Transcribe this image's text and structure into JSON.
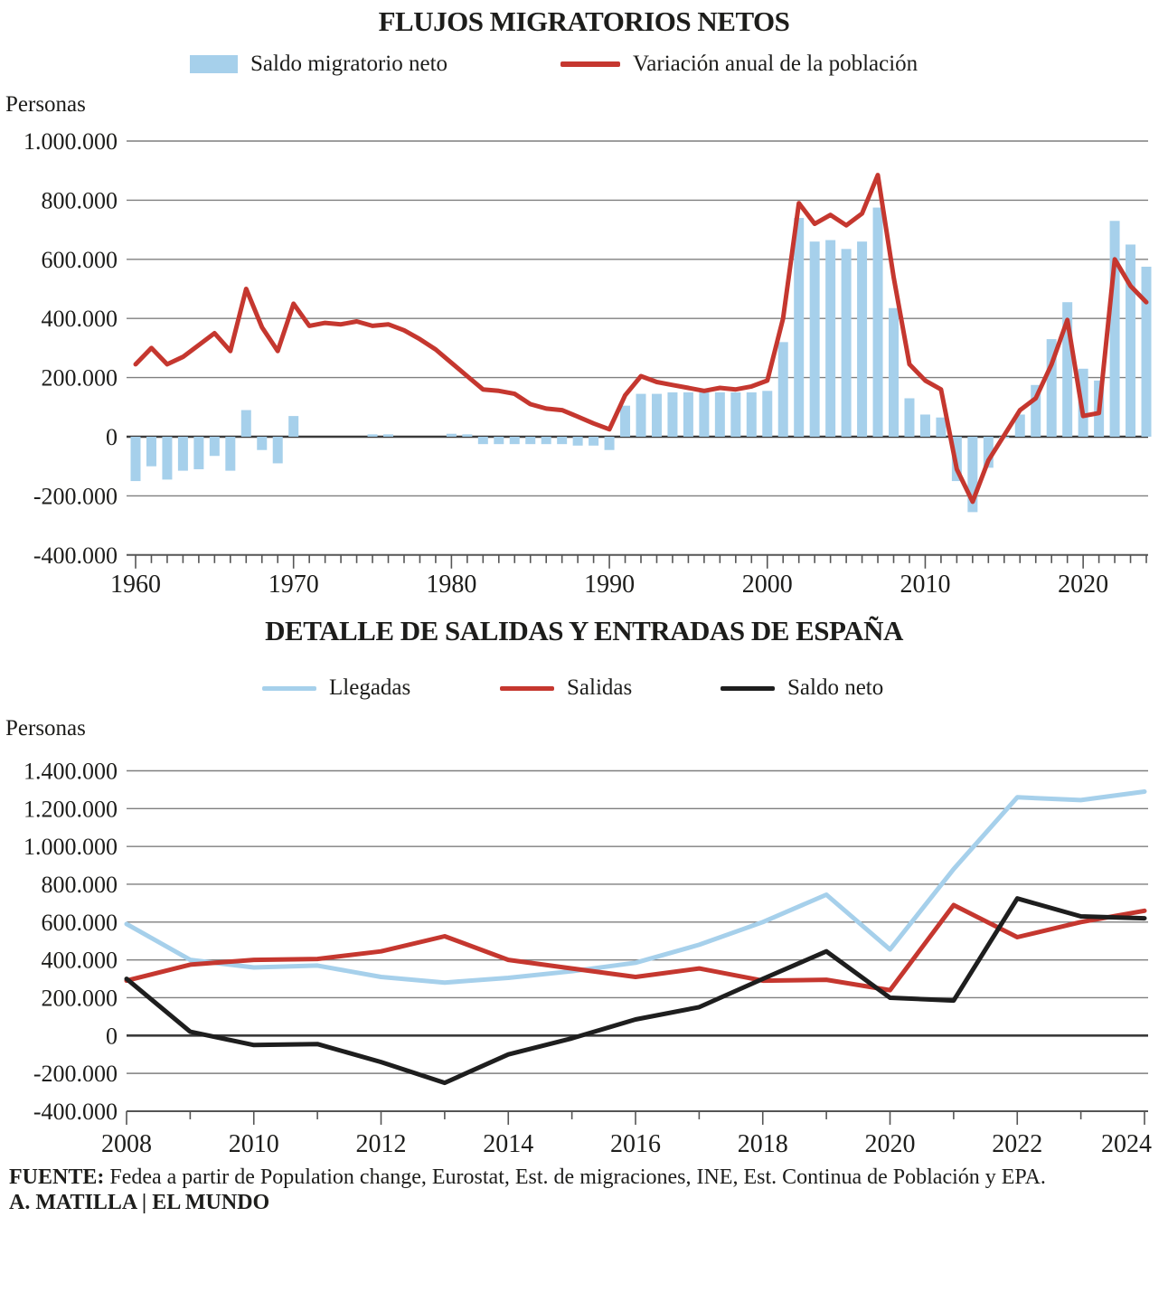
{
  "colors": {
    "blue": "#a6d0eb",
    "red": "#c5372f",
    "black": "#1e1e1e",
    "grid": "#7f7f7f",
    "zero_line": "#3a3a3a",
    "axis": "#555555",
    "text": "#1d1d1b"
  },
  "footer": {
    "source_label": "FUENTE:",
    "source_text": " Fedea a partir de Population change, Eurostat, Est. de migraciones, INE, Est. Continua de Población y EPA.",
    "credit": "A. MATILLA | EL MUNDO"
  },
  "chart_data": [
    {
      "type": "bar",
      "title": "FLUJOS MIGRATORIOS NETOS",
      "unit_label": "Personas",
      "x_start": 1960,
      "x_end": 2024,
      "ylim": [
        -400000,
        1000000
      ],
      "ytick_step": 200000,
      "ytick_labels": [
        "1.000.000",
        "800.000",
        "600.000",
        "400.000",
        "200.000",
        "0",
        "-200.000",
        "-400.000"
      ],
      "xtick_labels": [
        "1960",
        "1970",
        "1980",
        "1990",
        "2000",
        "2010",
        "2020"
      ],
      "grid": true,
      "legend_position": "top",
      "series": [
        {
          "name": "Saldo migratorio neto",
          "type": "bar",
          "color": "#a6d0eb",
          "values": [
            -150000,
            -100000,
            -145000,
            -115000,
            -110000,
            -65000,
            -115000,
            90000,
            -45000,
            -90000,
            70000,
            0,
            0,
            0,
            0,
            8000,
            8000,
            0,
            0,
            0,
            10000,
            8000,
            -25000,
            -25000,
            -25000,
            -25000,
            -25000,
            -25000,
            -30000,
            -30000,
            -45000,
            105000,
            145000,
            145000,
            150000,
            150000,
            150000,
            150000,
            150000,
            150000,
            155000,
            320000,
            740000,
            660000,
            665000,
            635000,
            660000,
            775000,
            435000,
            130000,
            75000,
            65000,
            -150000,
            -255000,
            -105000,
            -5000,
            75000,
            175000,
            330000,
            455000,
            230000,
            190000,
            730000,
            650000,
            575000
          ]
        },
        {
          "name": "Variación anual de la población",
          "type": "line",
          "color": "#c5372f",
          "values": [
            245000,
            300000,
            245000,
            270000,
            310000,
            350000,
            290000,
            500000,
            370000,
            290000,
            450000,
            375000,
            385000,
            380000,
            390000,
            375000,
            380000,
            360000,
            330000,
            295000,
            250000,
            205000,
            160000,
            155000,
            145000,
            110000,
            95000,
            90000,
            68000,
            45000,
            25000,
            140000,
            205000,
            185000,
            175000,
            165000,
            155000,
            165000,
            160000,
            170000,
            190000,
            400000,
            790000,
            720000,
            750000,
            715000,
            755000,
            885000,
            540000,
            245000,
            190000,
            160000,
            -110000,
            -220000,
            -80000,
            5000,
            90000,
            130000,
            245000,
            395000,
            70000,
            80000,
            600000,
            510000,
            455000
          ]
        }
      ]
    },
    {
      "type": "line",
      "title": "DETALLE DE SALIDAS Y ENTRADAS DE ESPAÑA",
      "unit_label": "Personas",
      "x_start": 2008,
      "x_end": 2024,
      "ylim": [
        -400000,
        1400000
      ],
      "ytick_step": 200000,
      "ytick_labels": [
        "1.400.000",
        "1.200.000",
        "1.000.000",
        "800.000",
        "600.000",
        "400.000",
        "200.000",
        "0",
        "-200.000",
        "-400.000"
      ],
      "xtick_labels": [
        "2008",
        "2010",
        "2012",
        "2014",
        "2016",
        "2018",
        "2020",
        "2022",
        "2024"
      ],
      "grid": true,
      "legend_position": "top",
      "series": [
        {
          "name": "Llegadas",
          "type": "line",
          "color": "#a6d0eb",
          "values": [
            590000,
            400000,
            360000,
            370000,
            310000,
            280000,
            305000,
            340000,
            385000,
            480000,
            600000,
            745000,
            455000,
            880000,
            1260000,
            1245000,
            1290000
          ]
        },
        {
          "name": "Salidas",
          "type": "line",
          "color": "#c5372f",
          "values": [
            290000,
            375000,
            400000,
            405000,
            445000,
            525000,
            400000,
            355000,
            310000,
            355000,
            290000,
            295000,
            240000,
            690000,
            520000,
            600000,
            660000
          ]
        },
        {
          "name": "Saldo neto",
          "type": "line",
          "color": "#1e1e1e",
          "values": [
            300000,
            20000,
            -50000,
            -45000,
            -140000,
            -250000,
            -100000,
            -15000,
            85000,
            150000,
            300000,
            445000,
            200000,
            185000,
            725000,
            630000,
            620000
          ]
        }
      ]
    }
  ]
}
